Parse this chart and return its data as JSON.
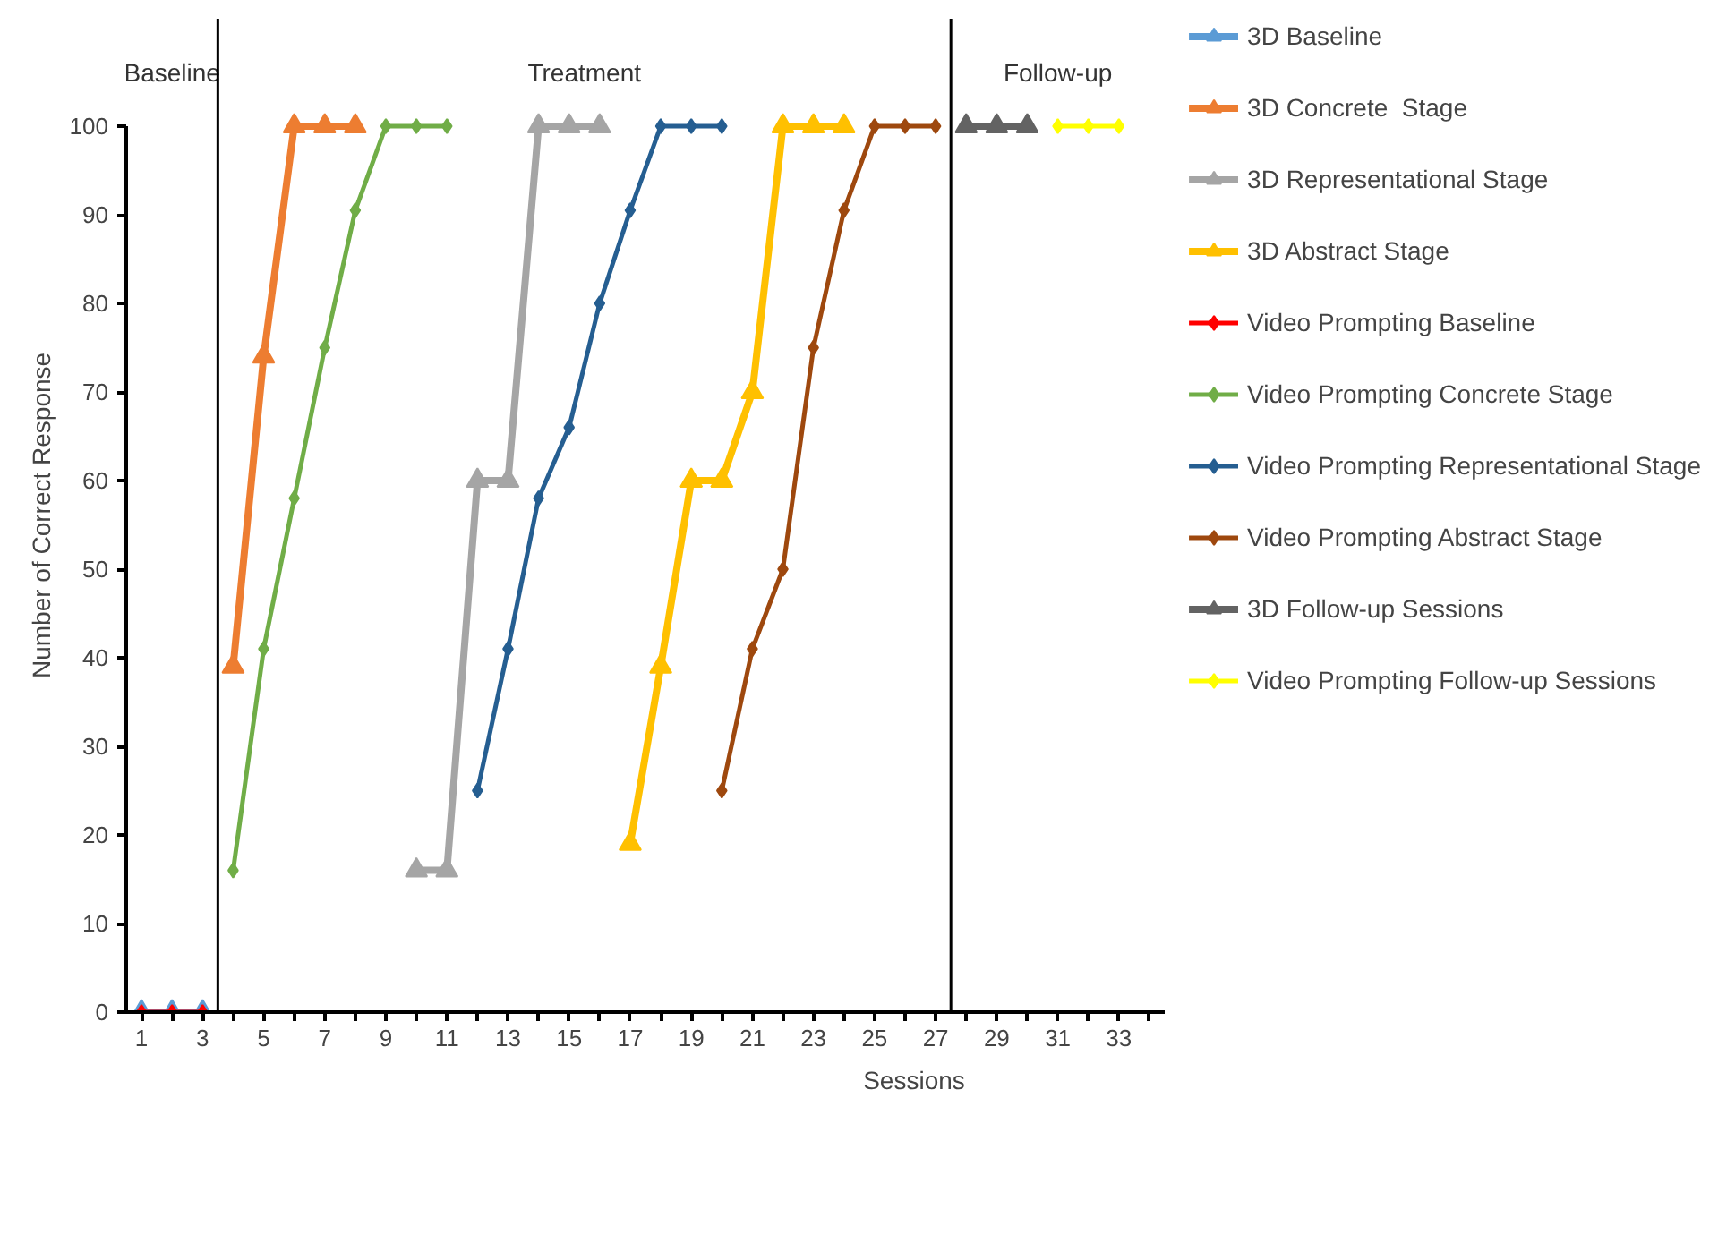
{
  "chart_data": {
    "type": "line",
    "xlabel": "Sessions",
    "ylabel": "Number of Correct Response",
    "xlim": [
      0.5,
      34.5
    ],
    "ylim": [
      0,
      100
    ],
    "xticks": [
      1,
      {
        "value": 2,
        "label": null
      },
      3,
      {
        "value": 4,
        "label": null
      },
      5,
      {
        "value": 6,
        "label": null
      },
      7,
      {
        "value": 8,
        "label": null
      },
      9,
      {
        "value": 10,
        "label": null
      },
      11,
      {
        "value": 12,
        "label": null
      },
      13,
      {
        "value": 14,
        "label": null
      },
      15,
      {
        "value": 16,
        "label": null
      },
      17,
      {
        "value": 18,
        "label": null
      },
      19,
      {
        "value": 20,
        "label": null
      },
      21,
      {
        "value": 22,
        "label": null
      },
      23,
      {
        "value": 24,
        "label": null
      },
      25,
      {
        "value": 26,
        "label": null
      },
      27,
      {
        "value": 28,
        "label": null
      },
      29,
      {
        "value": 30,
        "label": null
      },
      31,
      {
        "value": 32,
        "label": null
      },
      33,
      {
        "value": 34,
        "label": null
      }
    ],
    "yticks": [
      0,
      10,
      20,
      30,
      40,
      50,
      60,
      70,
      80,
      90,
      100
    ],
    "grid": false,
    "legend": "right",
    "ref_lines": [
      {
        "axis": "x",
        "value": 3.5,
        "color": "#000000"
      },
      {
        "axis": "x",
        "value": 27.5,
        "color": "#000000"
      }
    ],
    "annotations": [
      "Baseline",
      "Treatment",
      "Follow-up"
    ],
    "series": [
      {
        "name": "3D Baseline",
        "color": "#5b9bd5",
        "marker": "triangle",
        "x": [
          1,
          2,
          3
        ],
        "values": [
          0,
          0,
          0
        ]
      },
      {
        "name": "3D Concrete  Stage",
        "color": "#ed7d31",
        "marker": "triangle",
        "x": [
          4,
          5,
          6,
          7,
          8
        ],
        "values": [
          39,
          74,
          100,
          100,
          100
        ]
      },
      {
        "name": "3D Representational Stage",
        "color": "#a5a5a5",
        "marker": "triangle",
        "x": [
          10,
          11,
          12,
          13,
          14,
          15,
          16
        ],
        "values": [
          16,
          16,
          60,
          60,
          100,
          100,
          100
        ]
      },
      {
        "name": "3D Abstract Stage",
        "color": "#ffc000",
        "marker": "triangle",
        "x": [
          17,
          18,
          19,
          20,
          21,
          22,
          23,
          24
        ],
        "values": [
          19,
          39,
          60,
          60,
          70,
          100,
          100,
          100
        ]
      },
      {
        "name": "Video Prompting Baseline",
        "color": "#ff0000",
        "marker": "diamond",
        "x": [
          1,
          2,
          3
        ],
        "values": [
          0,
          0,
          0
        ]
      },
      {
        "name": "Video Prompting Concrete Stage",
        "color": "#70ad47",
        "marker": "diamond",
        "x": [
          4,
          5,
          6,
          7,
          8,
          9,
          10,
          11
        ],
        "values": [
          16,
          41,
          58,
          75,
          90.5,
          100,
          100,
          100
        ]
      },
      {
        "name": "Video Prompting Representational Stage",
        "color": "#255e91",
        "marker": "diamond",
        "x": [
          12,
          13,
          14,
          15,
          16,
          17,
          18,
          19,
          20
        ],
        "values": [
          25,
          41,
          58,
          66,
          80,
          90.5,
          100,
          100,
          100
        ]
      },
      {
        "name": "Video Prompting Abstract Stage",
        "color": "#9e480e",
        "marker": "diamond",
        "x": [
          20,
          21,
          22,
          23,
          24,
          25,
          26,
          27
        ],
        "values": [
          25,
          41,
          50,
          75,
          90.5,
          100,
          100,
          100
        ]
      },
      {
        "name": "3D Follow-up Sessions",
        "color": "#636363",
        "marker": "triangle",
        "x": [
          28,
          29,
          30
        ],
        "values": [
          100,
          100,
          100
        ]
      },
      {
        "name": "Video Prompting Follow-up Sessions",
        "color": "#ffff00",
        "marker": "diamond",
        "x": [
          31,
          32,
          33
        ],
        "values": [
          100,
          100,
          100
        ]
      }
    ]
  }
}
